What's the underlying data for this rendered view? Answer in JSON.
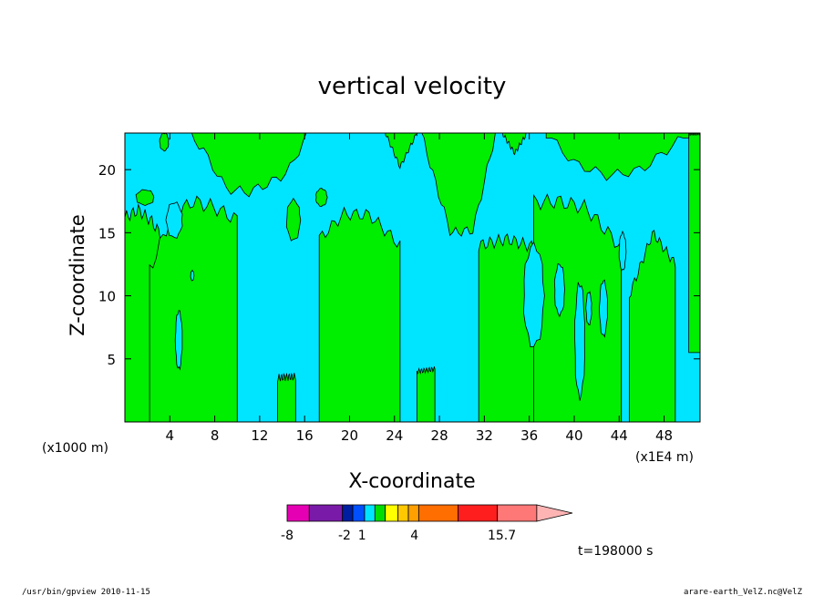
{
  "footer": {
    "left": "/usr/bin/gpview  2010-11-15",
    "right": "arare-earth_VelZ.nc@VelZ"
  },
  "chart_data": {
    "type": "heatmap",
    "title": "vertical velocity",
    "xlabel": "X-coordinate",
    "ylabel": "Z-coordinate",
    "x_unit_note": "(x1000 m)",
    "x_scale_note": "(x1E4 m)",
    "time_label": "t=198000 s",
    "xlim": [
      0,
      51.2
    ],
    "ylim": [
      0,
      22.9
    ],
    "x_ticks": [
      4,
      8,
      12,
      16,
      20,
      24,
      28,
      32,
      36,
      40,
      44,
      48
    ],
    "y_ticks": [
      5,
      10,
      15,
      20
    ],
    "background_color": "#00e5ff",
    "positive_color": "#00ee00",
    "levels_text": [
      "-8",
      "-2",
      "1",
      "4",
      "15.7"
    ],
    "colorbar": {
      "colors": [
        "#e600b4",
        "#7a1aa8",
        "#001ea0",
        "#0050ff",
        "#00e5ff",
        "#00dd00",
        "#ffff00",
        "#ffc800",
        "#ffa000",
        "#ff6e00",
        "#ff1e1e",
        "#ff7878",
        "#ffb4b4"
      ],
      "weights": [
        0.9,
        1.35,
        0.42,
        0.48,
        0.42,
        0.42,
        0.52,
        0.42,
        0.42,
        1.6,
        1.6,
        1.6,
        1.45
      ],
      "label_positions": [
        0.0,
        0.23,
        0.3,
        0.51,
        0.86
      ]
    },
    "regions": [
      {
        "name": "updraft-band-1",
        "kind": "band",
        "x": [
          0.0,
          3.9
        ],
        "ylo": 0.0,
        "yhi": 16.4,
        "pts": [
          [
            0.0,
            16.2
          ],
          [
            1.2,
            16.8
          ],
          [
            2.4,
            15.9
          ],
          [
            3.2,
            14.8
          ],
          [
            3.9,
            12.6
          ]
        ],
        "wobble": 0.5
      },
      {
        "name": "updraft-band-2",
        "kind": "band",
        "x": [
          2.2,
          10.0
        ],
        "ylo": 0.0,
        "yhi": 17.0,
        "pts": [
          [
            2.2,
            12.0
          ],
          [
            4.0,
            16.0
          ],
          [
            6.0,
            17.5
          ],
          [
            8.0,
            17.0
          ],
          [
            10.0,
            16.0
          ]
        ],
        "wobble": 0.6
      },
      {
        "name": "updraft-band-3",
        "kind": "band",
        "x": [
          13.6,
          15.2
        ],
        "ylo": 0.0,
        "yhi": 3.6,
        "pts": [
          [
            13.6,
            3.5
          ],
          [
            15.2,
            3.6
          ]
        ],
        "wobble": 0.3
      },
      {
        "name": "updraft-band-4",
        "kind": "band",
        "x": [
          17.3,
          24.5
        ],
        "ylo": 0.0,
        "yhi": 16.5,
        "pts": [
          [
            17.3,
            14.5
          ],
          [
            19.5,
            16.5
          ],
          [
            21.8,
            16.4
          ],
          [
            24.5,
            14.0
          ]
        ],
        "wobble": 0.5
      },
      {
        "name": "updraft-band-5",
        "kind": "band",
        "x": [
          26.0,
          27.6
        ],
        "ylo": 0.0,
        "yhi": 4.2,
        "pts": [
          [
            26.0,
            4.0
          ],
          [
            27.6,
            4.2
          ]
        ],
        "wobble": 0.2
      },
      {
        "name": "updraft-band-6",
        "kind": "band",
        "x": [
          31.5,
          36.6
        ],
        "ylo": 0.0,
        "yhi": 14.5,
        "pts": [
          [
            31.5,
            14.0
          ],
          [
            34.0,
            14.5
          ],
          [
            36.6,
            13.8
          ]
        ],
        "wobble": 0.5
      },
      {
        "name": "updraft-band-7",
        "kind": "band",
        "x": [
          36.4,
          44.2
        ],
        "ylo": 0.0,
        "yhi": 17.5,
        "pts": [
          [
            36.4,
            17.4
          ],
          [
            38.5,
            17.5
          ],
          [
            41.0,
            17.0
          ],
          [
            44.2,
            13.8
          ]
        ],
        "wobble": 0.6
      },
      {
        "name": "updraft-band-8",
        "kind": "band",
        "x": [
          44.9,
          49.0
        ],
        "ylo": 0.0,
        "yhi": 15.0,
        "pts": [
          [
            44.9,
            10.0
          ],
          [
            47.0,
            15.0
          ],
          [
            49.0,
            12.5
          ]
        ],
        "wobble": 0.4
      },
      {
        "name": "updraft-band-9",
        "kind": "band",
        "x": [
          50.2,
          51.2
        ],
        "ylo": 6.0,
        "yhi": 22.9,
        "pts": [
          [
            50.2,
            22.9
          ],
          [
            51.2,
            22.9
          ]
        ],
        "wobble": 0.2
      },
      {
        "name": "updraft-top-1",
        "kind": "top",
        "x": [
          5.8,
          16.3
        ],
        "ylo": 17.8,
        "yhi": 22.9,
        "pts": [
          [
            5.8,
            22.9
          ],
          [
            7.0,
            21.5
          ],
          [
            9.0,
            18.5
          ],
          [
            11.0,
            18.2
          ],
          [
            13.0,
            19.0
          ],
          [
            14.5,
            19.8
          ],
          [
            16.3,
            22.9
          ]
        ],
        "wobble": 0.4
      },
      {
        "name": "updraft-top-2",
        "kind": "top",
        "x": [
          23.2,
          26.0
        ],
        "ylo": 20.0,
        "yhi": 22.9,
        "pts": [
          [
            23.2,
            22.9
          ],
          [
            24.5,
            20.2
          ],
          [
            26.0,
            22.9
          ]
        ],
        "wobble": 0.2
      },
      {
        "name": "updraft-top-3",
        "kind": "top",
        "x": [
          26.4,
          33.0
        ],
        "ylo": 14.6,
        "yhi": 22.9,
        "pts": [
          [
            26.4,
            22.9
          ],
          [
            27.8,
            18.5
          ],
          [
            29.0,
            15.0
          ],
          [
            31.0,
            15.2
          ],
          [
            33.0,
            22.9
          ]
        ],
        "wobble": 0.4
      },
      {
        "name": "updraft-top-4",
        "kind": "top",
        "x": [
          33.6,
          35.8
        ],
        "ylo": 21.2,
        "yhi": 22.9,
        "pts": [
          [
            33.6,
            22.9
          ],
          [
            34.7,
            21.3
          ],
          [
            35.8,
            22.9
          ]
        ],
        "wobble": 0.2
      },
      {
        "name": "updraft-top-5",
        "kind": "top",
        "x": [
          37.5,
          50.2
        ],
        "ylo": 17.0,
        "yhi": 22.9,
        "pts": [
          [
            37.5,
            22.9
          ],
          [
            40.0,
            20.5
          ],
          [
            43.0,
            19.5
          ],
          [
            46.0,
            20.0
          ],
          [
            50.2,
            22.9
          ]
        ],
        "wobble": 0.4
      },
      {
        "name": "updraft-blob-1",
        "kind": "blob",
        "cx": 15.0,
        "cy": 16.0,
        "rx": 0.6,
        "ry": 1.6
      },
      {
        "name": "updraft-blob-2",
        "kind": "blob",
        "cx": 17.5,
        "cy": 17.8,
        "rx": 0.5,
        "ry": 0.7
      },
      {
        "name": "updraft-blob-3",
        "kind": "blob",
        "cx": 1.8,
        "cy": 17.8,
        "rx": 0.8,
        "ry": 0.6
      },
      {
        "name": "updraft-blob-4",
        "kind": "blob",
        "cx": 3.5,
        "cy": 22.2,
        "rx": 0.4,
        "ry": 0.7
      },
      {
        "name": "downdraft-hole-1",
        "kind": "hole",
        "cx": 4.4,
        "cy": 16.0,
        "rx": 0.7,
        "ry": 1.4
      },
      {
        "name": "downdraft-hole-2",
        "kind": "hole",
        "cx": 4.8,
        "cy": 6.5,
        "rx": 0.3,
        "ry": 2.3
      },
      {
        "name": "downdraft-hole-3",
        "kind": "hole",
        "cx": 6.0,
        "cy": 11.6,
        "rx": 0.15,
        "ry": 0.4
      },
      {
        "name": "downdraft-hole-4",
        "kind": "hole",
        "cx": 36.4,
        "cy": 10.0,
        "rx": 0.9,
        "ry": 4.0
      },
      {
        "name": "downdraft-hole-5",
        "kind": "hole",
        "cx": 38.7,
        "cy": 10.5,
        "rx": 0.45,
        "ry": 2.0
      },
      {
        "name": "downdraft-hole-6",
        "kind": "hole",
        "cx": 40.5,
        "cy": 6.5,
        "rx": 0.45,
        "ry": 4.5
      },
      {
        "name": "downdraft-hole-7",
        "kind": "hole",
        "cx": 41.3,
        "cy": 9.0,
        "rx": 0.25,
        "ry": 1.3
      },
      {
        "name": "downdraft-hole-8",
        "kind": "hole",
        "cx": 42.6,
        "cy": 9.0,
        "rx": 0.35,
        "ry": 2.2
      },
      {
        "name": "downdraft-hole-9",
        "kind": "hole",
        "cx": 44.3,
        "cy": 13.5,
        "rx": 0.3,
        "ry": 1.5
      }
    ]
  }
}
